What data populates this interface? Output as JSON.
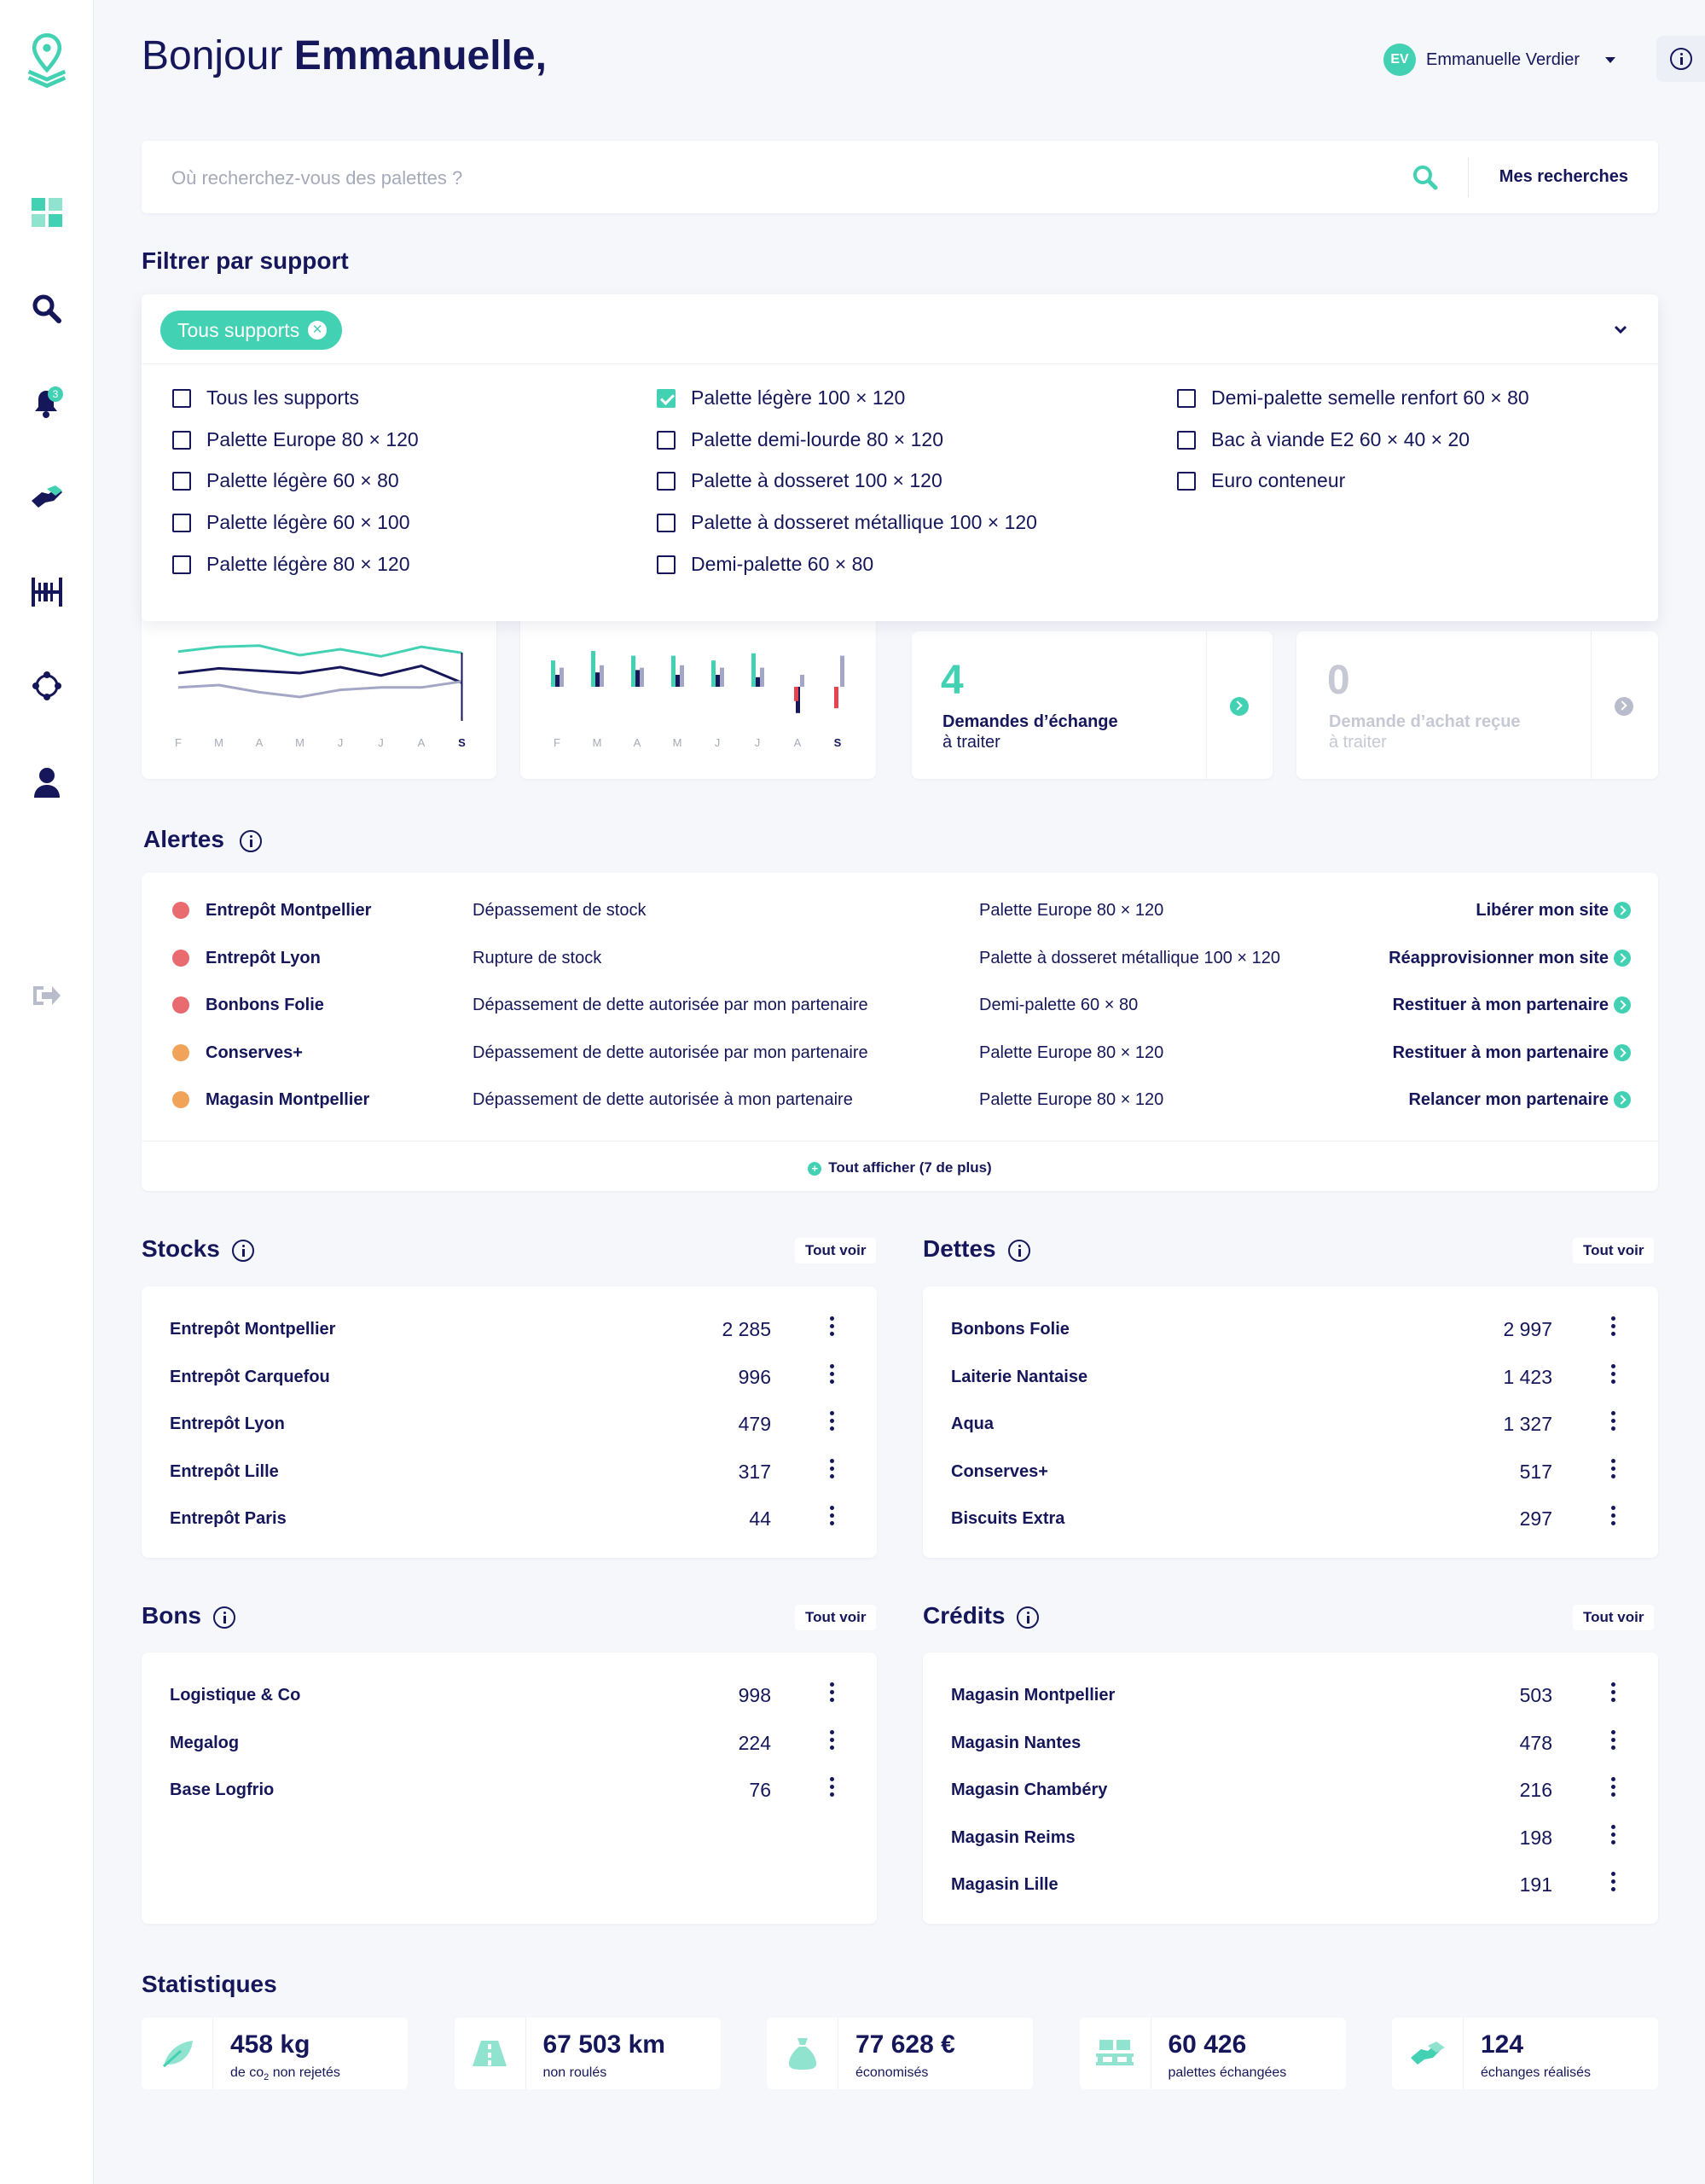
{
  "header": {
    "greeting": "Bonjour",
    "user_first_name": "Emmanuelle,",
    "user_initials": "EV",
    "user_name": "Emmanuelle Verdier"
  },
  "search": {
    "placeholder": "Où recherchez-vous des palettes ?",
    "saved_label": "Mes recherches"
  },
  "filter": {
    "title": "Filtrer par support",
    "chip": "Tous supports",
    "options": [
      {
        "label": "Tous les supports",
        "checked": false
      },
      {
        "label": "Palette Europe 80 × 120",
        "checked": false
      },
      {
        "label": "Palette légère 60 × 80",
        "checked": false
      },
      {
        "label": "Palette légère 60 × 100",
        "checked": false
      },
      {
        "label": "Palette légère 80 × 120",
        "checked": false
      },
      {
        "label": "Palette légère 100 × 120",
        "checked": true
      },
      {
        "label": "Palette demi-lourde 80 × 120",
        "checked": false
      },
      {
        "label": "Palette à dosseret 100 × 120",
        "checked": false
      },
      {
        "label": "Palette à dosseret métallique 100 × 120",
        "checked": false
      },
      {
        "label": "Demi-palette 60 × 80",
        "checked": false
      },
      {
        "label": "Demi-palette semelle renfort 60 × 80",
        "checked": false
      },
      {
        "label": "Bac à viande E2 60 × 40 × 20",
        "checked": false
      },
      {
        "label": "Euro conteneur",
        "checked": false
      }
    ]
  },
  "chart_data": [
    {
      "type": "line",
      "categories": [
        "F",
        "M",
        "A",
        "M",
        "J",
        "J",
        "A",
        "S"
      ],
      "series": [
        {
          "values": [
            58,
            62,
            63,
            55,
            60,
            54,
            62,
            57
          ]
        },
        {
          "values": [
            40,
            44,
            42,
            40,
            45,
            38,
            46,
            32
          ]
        },
        {
          "values": [
            28,
            30,
            24,
            20,
            26,
            28,
            28,
            33
          ]
        }
      ]
    },
    {
      "type": "bar",
      "categories": [
        "F",
        "M",
        "A",
        "M",
        "J",
        "J",
        "A",
        "S"
      ],
      "series": [
        {
          "values": [
            22,
            30,
            26,
            26,
            22,
            28,
            0,
            0
          ]
        },
        {
          "values": [
            10,
            12,
            14,
            10,
            10,
            8,
            -22,
            0
          ]
        },
        {
          "values": [
            16,
            18,
            16,
            18,
            16,
            16,
            10,
            26
          ]
        },
        {
          "values": [
            0,
            0,
            0,
            0,
            0,
            0,
            -12,
            -18
          ]
        }
      ]
    }
  ],
  "kpis": [
    {
      "value": "4",
      "label1": "Demandes d’échange",
      "label2": "à traiter"
    },
    {
      "value": "0",
      "label1": "Demande d’achat reçue",
      "label2": "à traiter"
    }
  ],
  "alerts": {
    "title": "Alertes",
    "rows": [
      {
        "name": "Entrepôt Montpellier",
        "type": "Dépassement de stock",
        "product": "Palette Europe 80 × 120",
        "action": "Libérer mon site",
        "level": "#e96b6f"
      },
      {
        "name": "Entrepôt Lyon",
        "type": "Rupture de stock",
        "product": "Palette à dosseret métallique 100 × 120",
        "action": "Réapprovisionner mon site",
        "level": "#e96b6f"
      },
      {
        "name": "Bonbons Folie",
        "type": "Dépassement de dette autorisée par mon partenaire",
        "product": "Demi-palette 60 × 80",
        "action": "Restituer à mon partenaire",
        "level": "#e96b6f"
      },
      {
        "name": "Conserves+",
        "type": "Dépassement de dette autorisée par mon partenaire",
        "product": "Palette Europe 80 × 120",
        "action": "Restituer à mon partenaire",
        "level": "#f2a35a"
      },
      {
        "name": "Magasin Montpellier",
        "type": "Dépassement de dette autorisée à mon partenaire",
        "product": "Palette Europe 80 × 120",
        "action": "Relancer mon partenaire",
        "level": "#f2a35a"
      }
    ],
    "show_all": "Tout afficher (7 de plus)"
  },
  "see_all": "Tout voir",
  "stocks": {
    "title": "Stocks",
    "rows": [
      {
        "name": "Entrepôt Montpellier",
        "value": "2 285"
      },
      {
        "name": "Entrepôt Carquefou",
        "value": "996"
      },
      {
        "name": "Entrepôt Lyon",
        "value": "479"
      },
      {
        "name": "Entrepôt Lille",
        "value": "317"
      },
      {
        "name": "Entrepôt Paris",
        "value": "44"
      }
    ]
  },
  "debts": {
    "title": "Dettes",
    "rows": [
      {
        "name": "Bonbons Folie",
        "value": "2 997"
      },
      {
        "name": "Laiterie Nantaise",
        "value": "1 423"
      },
      {
        "name": "Aqua",
        "value": "1 327"
      },
      {
        "name": "Conserves+",
        "value": "517"
      },
      {
        "name": "Biscuits Extra",
        "value": "297"
      }
    ]
  },
  "vouchers": {
    "title": "Bons",
    "rows": [
      {
        "name": "Logistique & Co",
        "value": "998"
      },
      {
        "name": "Megalog",
        "value": "224"
      },
      {
        "name": "Base Logfrio",
        "value": "76"
      }
    ]
  },
  "credits": {
    "title": "Crédits",
    "rows": [
      {
        "name": "Magasin Montpellier",
        "value": "503"
      },
      {
        "name": "Magasin Nantes",
        "value": "478"
      },
      {
        "name": "Magasin Chambéry",
        "value": "216"
      },
      {
        "name": "Magasin Reims",
        "value": "198"
      },
      {
        "name": "Magasin Lille",
        "value": "191"
      }
    ]
  },
  "stats": {
    "title": "Statistiques",
    "items": [
      {
        "value": "458 kg",
        "label_pre": "de co",
        "label_sub": "2",
        "label_post": " non rejetés",
        "icon": "leaf-icon"
      },
      {
        "value": "67 503 km",
        "label": "non roulés",
        "icon": "road-icon"
      },
      {
        "value": "77 628 €",
        "label": "économisés",
        "icon": "money-bag-icon"
      },
      {
        "value": "60 426",
        "label": "palettes échangées",
        "icon": "pallet-icon"
      },
      {
        "value": "124",
        "label": "échanges réalisés",
        "icon": "exchange-hands-icon"
      }
    ]
  },
  "notifications_count": "3",
  "colors": {
    "accent": "#43d1b3",
    "navy": "#15175a",
    "alert_red": "#e96b6f",
    "alert_orange": "#f2a35a",
    "bar_grey": "#a4a6c6"
  }
}
